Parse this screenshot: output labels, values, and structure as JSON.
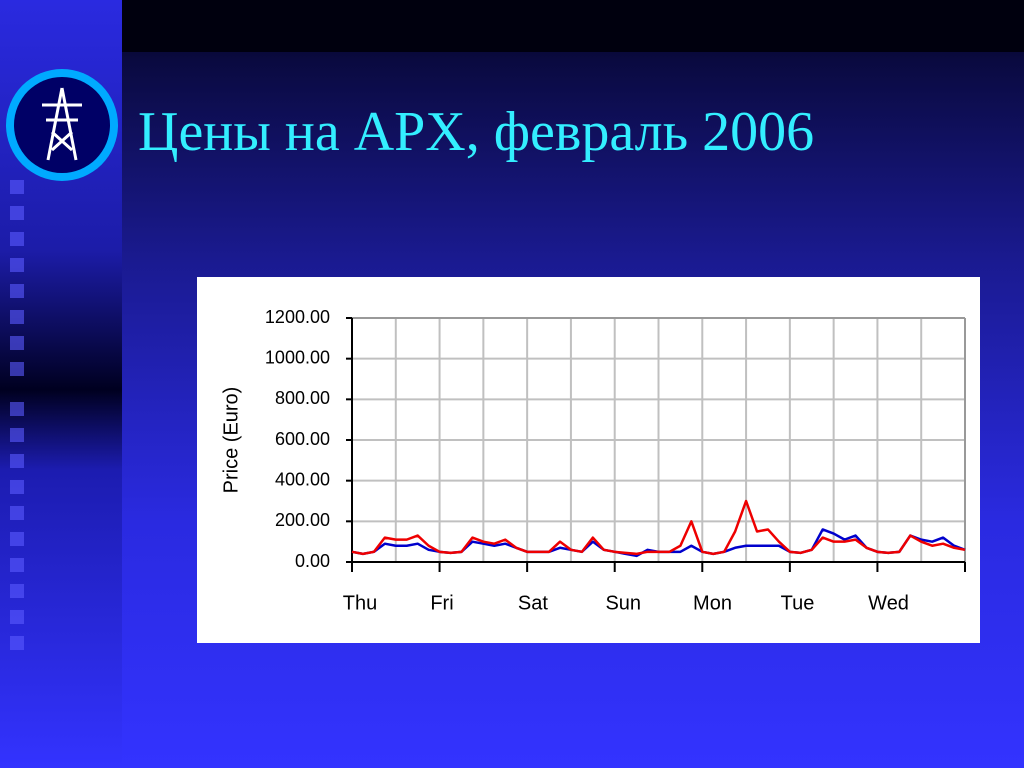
{
  "title": "Цены на APX, февраль 2006",
  "chart_data": {
    "type": "line",
    "y_label": "Price (Euro)",
    "x": [
      0,
      3,
      6,
      9,
      12,
      15,
      18,
      21,
      24,
      27,
      30,
      33,
      36,
      39,
      42,
      45,
      48,
      51,
      54,
      57,
      60,
      63,
      66,
      69,
      72,
      75,
      78,
      81,
      84,
      87,
      90,
      93,
      96,
      99,
      102,
      105,
      108,
      111,
      114,
      117,
      120,
      123,
      126,
      129,
      132,
      135,
      138,
      141,
      144,
      147,
      150,
      153,
      156,
      159,
      162,
      165,
      168
    ],
    "xlim": [
      0,
      168
    ],
    "xticks": [
      {
        "value": 0,
        "label": "Thu"
      },
      {
        "value": 24,
        "label": "Fri"
      },
      {
        "value": 48,
        "label": "Sat"
      },
      {
        "value": 72,
        "label": "Sun"
      },
      {
        "value": 96,
        "label": "Mon"
      },
      {
        "value": 120,
        "label": "Tue"
      },
      {
        "value": 144,
        "label": "Wed"
      }
    ],
    "ylim": [
      0,
      1200
    ],
    "yticks": [
      {
        "value": 0,
        "label": "0.00"
      },
      {
        "value": 200,
        "label": "200.00"
      },
      {
        "value": 400,
        "label": "400.00"
      },
      {
        "value": 600,
        "label": "600.00"
      },
      {
        "value": 800,
        "label": "800.00"
      },
      {
        "value": 1000,
        "label": "1000.00"
      },
      {
        "value": 1200,
        "label": "1200.00"
      }
    ],
    "grid": true,
    "series": [
      {
        "color": "#0000cc",
        "values": [
          50,
          40,
          50,
          90,
          80,
          80,
          90,
          60,
          50,
          45,
          50,
          100,
          90,
          80,
          90,
          70,
          50,
          50,
          50,
          70,
          60,
          50,
          100,
          60,
          50,
          40,
          30,
          60,
          50,
          50,
          50,
          80,
          50,
          40,
          50,
          70,
          80,
          80,
          80,
          80,
          50,
          45,
          60,
          160,
          140,
          110,
          130,
          70,
          50,
          45,
          50,
          130,
          110,
          100,
          120,
          80,
          60
        ]
      },
      {
        "color": "#ee0000",
        "values": [
          50,
          40,
          50,
          120,
          110,
          110,
          130,
          80,
          50,
          45,
          50,
          120,
          100,
          90,
          110,
          70,
          50,
          50,
          50,
          100,
          60,
          50,
          120,
          60,
          50,
          45,
          40,
          50,
          50,
          50,
          80,
          200,
          50,
          40,
          50,
          150,
          300,
          150,
          160,
          100,
          50,
          45,
          60,
          120,
          100,
          100,
          110,
          70,
          50,
          45,
          50,
          130,
          100,
          80,
          90,
          70,
          60
        ]
      }
    ]
  }
}
